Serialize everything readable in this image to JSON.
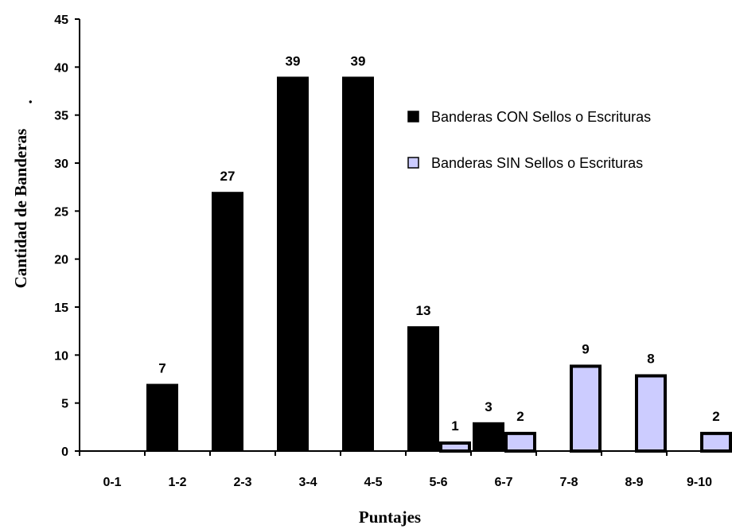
{
  "chart_data": {
    "type": "bar",
    "title": "",
    "xlabel": "Puntajes",
    "ylabel": "Cantidad de Banderas",
    "ylabel_suffix": ".",
    "categories": [
      "0-1",
      "1-2",
      "2-3",
      "3-4",
      "4-5",
      "5-6",
      "6-7",
      "7-8",
      "8-9",
      "9-10"
    ],
    "ylim": [
      0,
      45
    ],
    "yticks": [
      0,
      5,
      10,
      15,
      20,
      25,
      30,
      35,
      40,
      45
    ],
    "grid": false,
    "legend_position": "top-right",
    "series": [
      {
        "name": "Banderas CON Sellos o Escrituras",
        "color": "#000000",
        "values": [
          0,
          7,
          27,
          39,
          39,
          13,
          3,
          0,
          0,
          0
        ],
        "labels": [
          "",
          "7",
          "27",
          "39",
          "39",
          "13",
          "3",
          "",
          "",
          ""
        ]
      },
      {
        "name": "Banderas SIN Sellos o Escrituras",
        "color": "#ccccff",
        "values": [
          0,
          0,
          0,
          0,
          0,
          1,
          2,
          9,
          8,
          2
        ],
        "labels": [
          "",
          "",
          "",
          "",
          "",
          "1",
          "2",
          "9",
          "8",
          "2"
        ]
      }
    ]
  }
}
